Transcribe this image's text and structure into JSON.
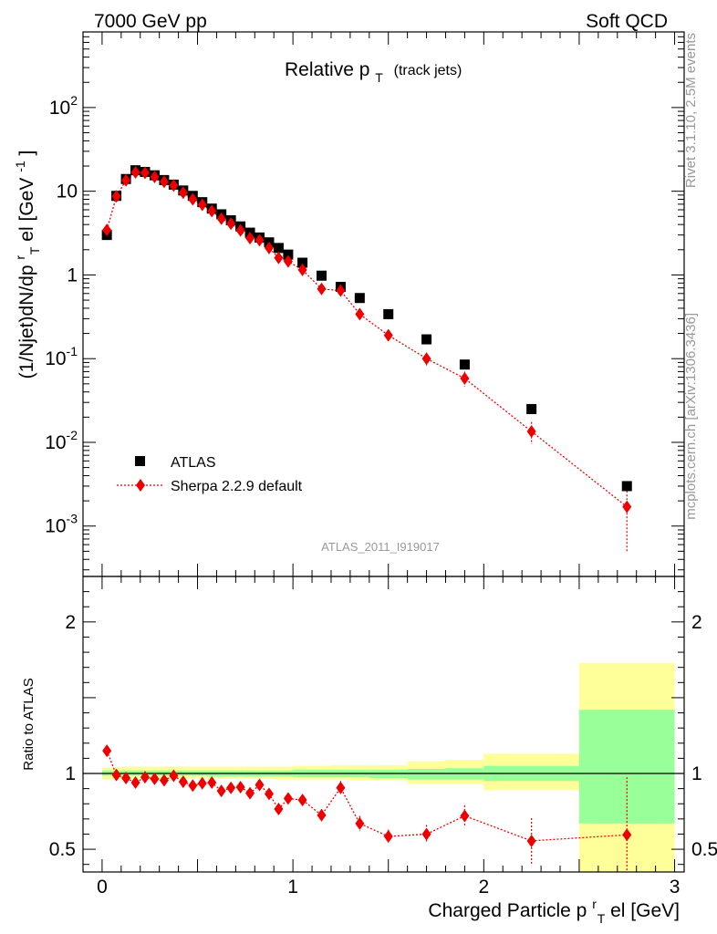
{
  "header": {
    "left": "7000 GeV pp",
    "right": "Soft QCD"
  },
  "side_labels": {
    "rivet": "Rivet 3.1.10,  2.5M events",
    "mcplots": "mcplots.cern.ch [arXiv:1306.3436]"
  },
  "chart_data": [
    {
      "type": "scatter",
      "panel": "main",
      "title_main": "Relative p",
      "title_sub": "T",
      "title_note": "(track jets)",
      "ylabel": "(1/Njet)dN/dp",
      "ylabel_sup1": "r",
      "ylabel_sub": "T",
      "ylabel_tail": "el [GeV",
      "ylabel_sup2": "-1",
      "ylabel_close": "]",
      "yscale": "log",
      "xlim": [
        -0.1,
        3.05
      ],
      "ylim": [
        0.00025,
        800
      ],
      "ytick_labels": [
        {
          "value": 0.001,
          "base": "10",
          "exp": "-3"
        },
        {
          "value": 0.01,
          "base": "10",
          "exp": "-2"
        },
        {
          "value": 0.1,
          "base": "10",
          "exp": "-1"
        },
        {
          "value": 1,
          "base": "1",
          "exp": ""
        },
        {
          "value": 10,
          "base": "10",
          "exp": ""
        },
        {
          "value": 100,
          "base": "10",
          "exp": "2"
        }
      ],
      "legend_position": "lower-left",
      "watermark": "ATLAS_2011_I919017",
      "series": [
        {
          "name": "ATLAS",
          "color": "#000000",
          "marker": "square",
          "x": [
            0.025,
            0.075,
            0.125,
            0.175,
            0.225,
            0.275,
            0.325,
            0.375,
            0.425,
            0.475,
            0.525,
            0.575,
            0.625,
            0.675,
            0.725,
            0.775,
            0.825,
            0.875,
            0.925,
            0.975,
            1.05,
            1.15,
            1.25,
            1.35,
            1.5,
            1.7,
            1.9,
            2.25,
            2.75
          ],
          "y": [
            3.0,
            8.8,
            14.0,
            17.8,
            17.0,
            15.5,
            13.6,
            12.0,
            10.2,
            8.8,
            7.4,
            6.2,
            5.3,
            4.5,
            3.8,
            3.2,
            2.8,
            2.45,
            2.1,
            1.75,
            1.4,
            0.98,
            0.72,
            0.53,
            0.34,
            0.17,
            0.085,
            0.025,
            0.003
          ]
        },
        {
          "name": "Sherpa 2.2.9 default",
          "color": "#ee0000",
          "marker": "diamond",
          "x": [
            0.025,
            0.075,
            0.125,
            0.175,
            0.225,
            0.275,
            0.325,
            0.375,
            0.425,
            0.475,
            0.525,
            0.575,
            0.625,
            0.675,
            0.725,
            0.775,
            0.825,
            0.875,
            0.925,
            0.975,
            1.05,
            1.15,
            1.25,
            1.35,
            1.5,
            1.7,
            1.9,
            2.25,
            2.75
          ],
          "y": [
            3.45,
            8.7,
            13.5,
            16.8,
            16.6,
            14.8,
            13.0,
            11.7,
            9.6,
            8.0,
            6.9,
            5.8,
            4.7,
            4.1,
            3.4,
            2.75,
            2.6,
            2.1,
            1.6,
            1.45,
            1.15,
            0.68,
            0.65,
            0.34,
            0.19,
            0.1,
            0.058,
            0.0135,
            0.0017
          ],
          "y_err": [
            0.25,
            0.4,
            0.6,
            0.6,
            0.6,
            0.5,
            0.5,
            0.4,
            0.4,
            0.35,
            0.3,
            0.3,
            0.25,
            0.2,
            0.2,
            0.2,
            0.2,
            0.15,
            0.13,
            0.1,
            0.1,
            0.06,
            0.06,
            0.04,
            0.02,
            0.018,
            0.012,
            0.004,
            0.0012
          ]
        }
      ]
    },
    {
      "type": "scatter",
      "panel": "ratio",
      "ylabel": "Ratio to ATLAS",
      "xlabel_main": "Charged Particle p",
      "xlabel_sup": "r",
      "xlabel_sub": "T",
      "xlabel_tail": "el [GeV]",
      "xlim": [
        -0.1,
        3.05
      ],
      "ylim": [
        0.35,
        2.3
      ],
      "xtick_labels": [
        "0",
        "1",
        "2",
        "3"
      ],
      "ytick_labels": [
        "0.5",
        "1",
        "2"
      ],
      "reference_line": 1,
      "band_colors": {
        "inner": "#99ff99",
        "outer": "#ffff99"
      },
      "bands": [
        {
          "x0": 0.0,
          "x1": 0.05,
          "in_lo": 0.985,
          "in_hi": 1.02,
          "out_lo": 0.96,
          "out_hi": 1.04
        },
        {
          "x0": 0.05,
          "x1": 0.1,
          "in_lo": 0.985,
          "in_hi": 1.02,
          "out_lo": 0.965,
          "out_hi": 1.04
        },
        {
          "x0": 0.1,
          "x1": 0.15,
          "in_lo": 0.985,
          "in_hi": 1.02,
          "out_lo": 0.965,
          "out_hi": 1.045
        },
        {
          "x0": 0.15,
          "x1": 0.2,
          "in_lo": 0.985,
          "in_hi": 1.02,
          "out_lo": 0.965,
          "out_hi": 1.045
        },
        {
          "x0": 0.2,
          "x1": 0.25,
          "in_lo": 0.985,
          "in_hi": 1.02,
          "out_lo": 0.965,
          "out_hi": 1.045
        },
        {
          "x0": 0.25,
          "x1": 0.3,
          "in_lo": 0.985,
          "in_hi": 1.02,
          "out_lo": 0.965,
          "out_hi": 1.045
        },
        {
          "x0": 0.3,
          "x1": 0.35,
          "in_lo": 0.985,
          "in_hi": 1.02,
          "out_lo": 0.965,
          "out_hi": 1.045
        },
        {
          "x0": 0.35,
          "x1": 0.4,
          "in_lo": 0.985,
          "in_hi": 1.02,
          "out_lo": 0.965,
          "out_hi": 1.045
        },
        {
          "x0": 0.4,
          "x1": 0.45,
          "in_lo": 0.985,
          "in_hi": 1.02,
          "out_lo": 0.965,
          "out_hi": 1.045
        },
        {
          "x0": 0.45,
          "x1": 0.5,
          "in_lo": 0.985,
          "in_hi": 1.02,
          "out_lo": 0.965,
          "out_hi": 1.045
        },
        {
          "x0": 0.5,
          "x1": 0.55,
          "in_lo": 0.985,
          "in_hi": 1.02,
          "out_lo": 0.965,
          "out_hi": 1.045
        },
        {
          "x0": 0.55,
          "x1": 0.6,
          "in_lo": 0.98,
          "in_hi": 1.02,
          "out_lo": 0.965,
          "out_hi": 1.045
        },
        {
          "x0": 0.6,
          "x1": 0.65,
          "in_lo": 0.98,
          "in_hi": 1.02,
          "out_lo": 0.965,
          "out_hi": 1.045
        },
        {
          "x0": 0.65,
          "x1": 0.7,
          "in_lo": 0.98,
          "in_hi": 1.02,
          "out_lo": 0.965,
          "out_hi": 1.045
        },
        {
          "x0": 0.7,
          "x1": 0.75,
          "in_lo": 0.98,
          "in_hi": 1.02,
          "out_lo": 0.965,
          "out_hi": 1.045
        },
        {
          "x0": 0.75,
          "x1": 0.8,
          "in_lo": 0.98,
          "in_hi": 1.02,
          "out_lo": 0.965,
          "out_hi": 1.045
        },
        {
          "x0": 0.8,
          "x1": 0.85,
          "in_lo": 0.98,
          "in_hi": 1.02,
          "out_lo": 0.965,
          "out_hi": 1.045
        },
        {
          "x0": 0.85,
          "x1": 0.9,
          "in_lo": 0.98,
          "in_hi": 1.02,
          "out_lo": 0.965,
          "out_hi": 1.045
        },
        {
          "x0": 0.9,
          "x1": 0.95,
          "in_lo": 0.98,
          "in_hi": 1.02,
          "out_lo": 0.96,
          "out_hi": 1.045
        },
        {
          "x0": 0.95,
          "x1": 1.0,
          "in_lo": 0.98,
          "in_hi": 1.02,
          "out_lo": 0.96,
          "out_hi": 1.045
        },
        {
          "x0": 1.0,
          "x1": 1.1,
          "in_lo": 0.975,
          "in_hi": 1.025,
          "out_lo": 0.96,
          "out_hi": 1.05
        },
        {
          "x0": 1.1,
          "x1": 1.2,
          "in_lo": 0.975,
          "in_hi": 1.025,
          "out_lo": 0.96,
          "out_hi": 1.05
        },
        {
          "x0": 1.2,
          "x1": 1.3,
          "in_lo": 0.975,
          "in_hi": 1.025,
          "out_lo": 0.96,
          "out_hi": 1.055
        },
        {
          "x0": 1.3,
          "x1": 1.4,
          "in_lo": 0.975,
          "in_hi": 1.025,
          "out_lo": 0.955,
          "out_hi": 1.055
        },
        {
          "x0": 1.4,
          "x1": 1.6,
          "in_lo": 0.97,
          "in_hi": 1.025,
          "out_lo": 0.955,
          "out_hi": 1.055
        },
        {
          "x0": 1.6,
          "x1": 1.8,
          "in_lo": 0.96,
          "in_hi": 1.03,
          "out_lo": 0.93,
          "out_hi": 1.08
        },
        {
          "x0": 1.8,
          "x1": 2.0,
          "in_lo": 0.96,
          "in_hi": 1.035,
          "out_lo": 0.93,
          "out_hi": 1.09
        },
        {
          "x0": 2.0,
          "x1": 2.5,
          "in_lo": 0.95,
          "in_hi": 1.05,
          "out_lo": 0.89,
          "out_hi": 1.13
        },
        {
          "x0": 2.5,
          "x1": 3.0,
          "in_lo": 0.67,
          "in_hi": 1.42,
          "out_lo": 0.35,
          "out_hi": 1.73
        }
      ],
      "series": [
        {
          "name": "Sherpa 2.2.9 default",
          "color": "#ee0000",
          "marker": "diamond",
          "x": [
            0.025,
            0.075,
            0.125,
            0.175,
            0.225,
            0.275,
            0.325,
            0.375,
            0.425,
            0.475,
            0.525,
            0.575,
            0.625,
            0.675,
            0.725,
            0.775,
            0.825,
            0.875,
            0.925,
            0.975,
            1.05,
            1.15,
            1.25,
            1.35,
            1.5,
            1.7,
            1.9,
            2.25,
            2.75
          ],
          "y": [
            1.15,
            0.99,
            0.97,
            0.94,
            0.975,
            0.965,
            0.955,
            0.985,
            0.945,
            0.92,
            0.935,
            0.94,
            0.885,
            0.905,
            0.91,
            0.87,
            0.925,
            0.865,
            0.765,
            0.835,
            0.825,
            0.725,
            0.905,
            0.67,
            0.585,
            0.6,
            0.72,
            0.555,
            0.595
          ],
          "y_err": [
            0.03,
            0.025,
            0.025,
            0.025,
            0.025,
            0.025,
            0.025,
            0.025,
            0.025,
            0.025,
            0.025,
            0.03,
            0.03,
            0.03,
            0.03,
            0.03,
            0.03,
            0.035,
            0.035,
            0.035,
            0.035,
            0.04,
            0.045,
            0.05,
            0.045,
            0.06,
            0.07,
            0.15,
            0.38
          ]
        }
      ]
    }
  ]
}
